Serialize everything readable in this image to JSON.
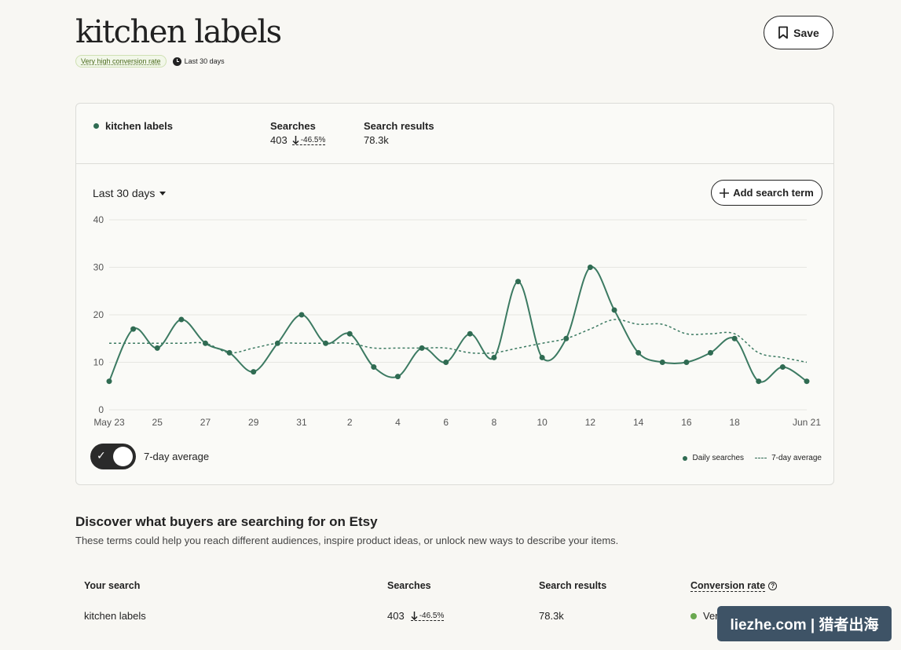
{
  "header": {
    "title": "kitchen labels",
    "conversion_badge": "Very high conversion rate",
    "period": "Last 30 days",
    "save_label": "Save"
  },
  "summary": {
    "term": "kitchen labels",
    "searches_label": "Searches",
    "searches_value": "403",
    "searches_delta": "-46.5%",
    "results_label": "Search results",
    "results_value": "78.3k"
  },
  "controls": {
    "range": "Last 30 days",
    "add_term_label": "Add search term",
    "toggle_label": "7-day average",
    "toggle_on": true
  },
  "legend": {
    "daily": "Daily searches",
    "average": "7-day average"
  },
  "colors": {
    "series": "#3c7a62",
    "accent_dark": "#2f6b52",
    "background": "#f8f7f3"
  },
  "chart_data": {
    "type": "line",
    "ylim": [
      0,
      40
    ],
    "yticks": [
      "0",
      "10",
      "20",
      "30",
      "40"
    ],
    "x": [
      "May 23",
      "May 24",
      "25",
      "May 26",
      "27",
      "May 28",
      "29",
      "May 30",
      "31",
      "Jun 1",
      "2",
      "Jun 3",
      "4",
      "Jun 5",
      "6",
      "Jun 7",
      "8",
      "Jun 9",
      "10",
      "Jun 11",
      "12",
      "Jun 13",
      "14",
      "Jun 15",
      "16",
      "Jun 17",
      "18",
      "Jun 19",
      "Jun 20",
      "Jun 21"
    ],
    "xtick_labels": [
      "May 23",
      "25",
      "27",
      "29",
      "31",
      "2",
      "4",
      "6",
      "8",
      "10",
      "12",
      "14",
      "16",
      "18",
      "Jun 21"
    ],
    "series": [
      {
        "name": "Daily searches",
        "values": [
          6,
          17,
          13,
          19,
          14,
          12,
          8,
          14,
          20,
          14,
          16,
          9,
          7,
          13,
          10,
          16,
          11,
          27,
          11,
          15,
          30,
          21,
          12,
          10,
          10,
          12,
          15,
          6,
          9,
          6
        ]
      },
      {
        "name": "7-day average",
        "values": [
          14,
          14,
          14,
          14,
          14,
          12,
          13,
          14,
          14,
          14,
          14,
          13,
          13,
          13,
          13,
          12,
          12,
          13,
          14,
          15,
          17,
          19,
          18,
          18,
          16,
          16,
          16,
          12,
          11,
          10
        ]
      }
    ]
  },
  "discover": {
    "title": "Discover what buyers are searching for on Etsy",
    "subtitle": "These terms could help you reach different audiences, inspire product ideas, or unlock new ways to describe your items.",
    "columns": [
      "Your search",
      "Searches",
      "Search results",
      "Conversion rate"
    ],
    "row": {
      "term": "kitchen labels",
      "searches": "403",
      "delta": "-46.5%",
      "results": "78.3k",
      "conversion": "Very high"
    }
  },
  "watermark": "liezhe.com | 猎者出海"
}
